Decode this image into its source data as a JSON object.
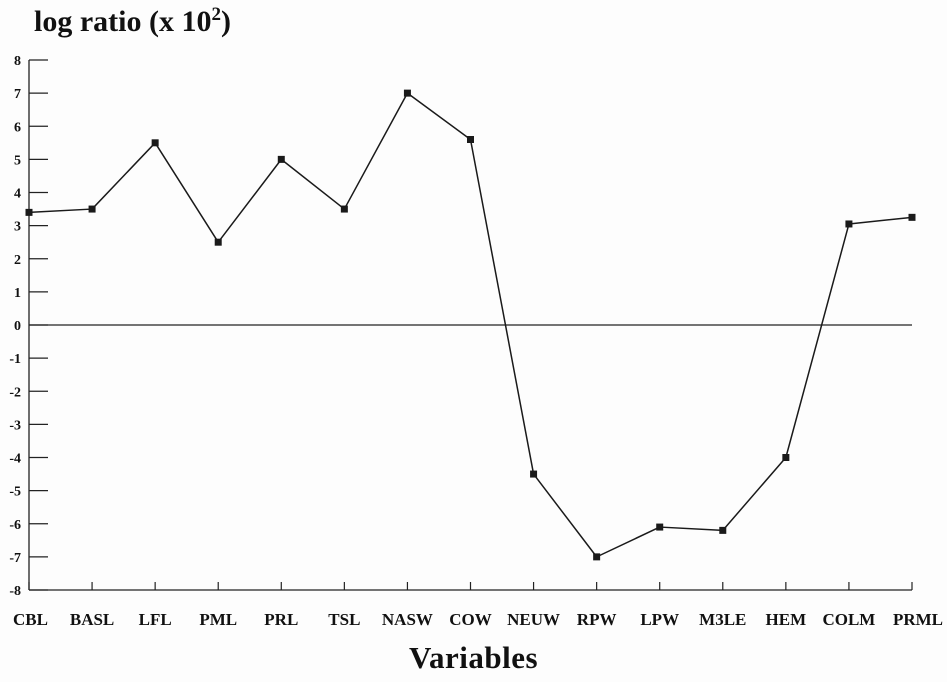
{
  "chart_data": {
    "type": "line",
    "title_main": "log ratio (x 10",
    "title_sup": "2",
    "title_close": ")",
    "xlabel": "Variables",
    "ylabel": "",
    "categories": [
      "CBL",
      "BASL",
      "LFL",
      "PML",
      "PRL",
      "TSL",
      "NASW",
      "COW",
      "NEUW",
      "RPW",
      "LPW",
      "M3LE",
      "HEM",
      "COLM",
      "PRML"
    ],
    "series": [
      {
        "values": [
          3.4,
          3.5,
          5.5,
          2.5,
          5.0,
          3.5,
          7.0,
          5.6,
          -4.5,
          -7.0,
          -6.1,
          -6.2,
          -4.0,
          3.05,
          3.25
        ]
      }
    ],
    "ylim": [
      -8,
      8
    ],
    "yticks": [
      8,
      7,
      6,
      5,
      4,
      3,
      2,
      1,
      0,
      -1,
      -2,
      -3,
      -4,
      -5,
      -6,
      -7,
      -8
    ],
    "zero_line": true,
    "grid": false,
    "colors": {
      "line": "#1a1a1a",
      "marker": "#1a1a1a",
      "axis": "#222222"
    }
  }
}
